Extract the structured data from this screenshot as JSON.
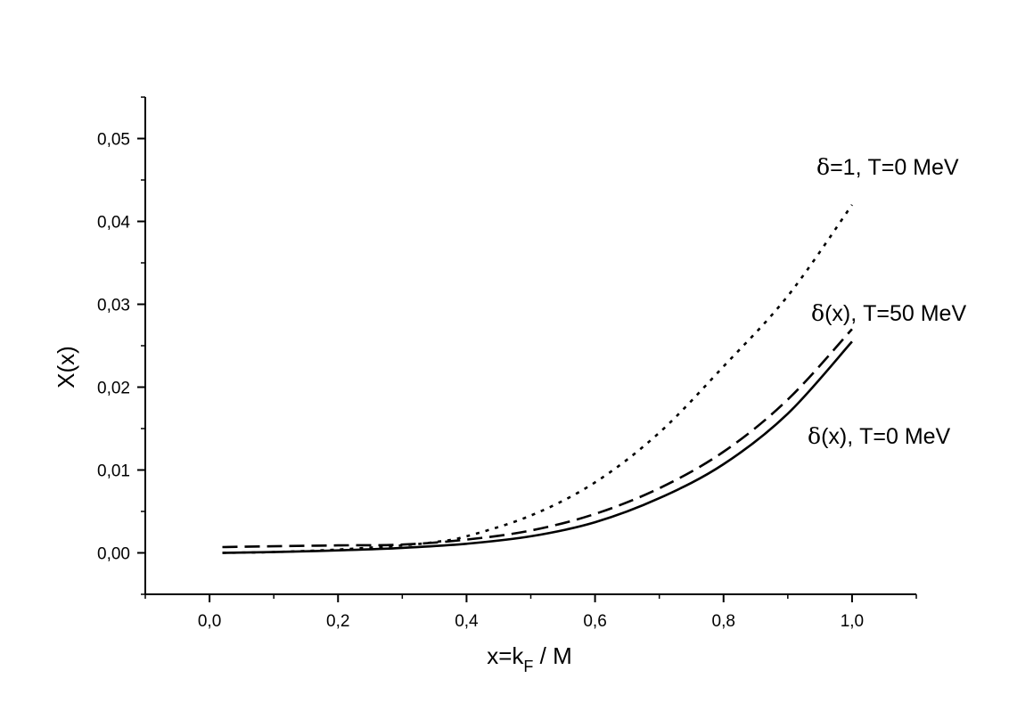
{
  "chart_data": {
    "type": "line",
    "title": "",
    "xlabel": "x=k",
    "xlabel_sub": "F",
    "xlabel_suffix": " / M",
    "ylabel": "X(x)",
    "xlim": [
      -0.1,
      1.1
    ],
    "ylim": [
      -0.005,
      0.055
    ],
    "xticks": [
      0.0,
      0.2,
      0.4,
      0.6,
      0.8,
      1.0
    ],
    "xtick_labels": [
      "0,0",
      "0,2",
      "0,4",
      "0,6",
      "0,8",
      "1,0"
    ],
    "yticks": [
      0.0,
      0.01,
      0.02,
      0.03,
      0.04,
      0.05
    ],
    "ytick_labels": [
      "0,00",
      "0,01",
      "0,02",
      "0,03",
      "0,04",
      "0,05"
    ],
    "grid": false,
    "legend": "inline labels near curve ends",
    "series": [
      {
        "name": "δ=1, T=0 MeV",
        "label_greek": "δ",
        "label_rest": "=1, T=0 MeV",
        "style": "dotted",
        "x": [
          0.02,
          0.1,
          0.2,
          0.3,
          0.35,
          0.4,
          0.5,
          0.6,
          0.7,
          0.8,
          0.9,
          1.0
        ],
        "y": [
          0.0,
          0.0001,
          0.0004,
          0.0009,
          0.0013,
          0.002,
          0.0045,
          0.0085,
          0.0145,
          0.0225,
          0.031,
          0.042
        ]
      },
      {
        "name": "δ(x), T=50 MeV",
        "label_greek": "δ",
        "label_rest": "(x), T=50 MeV",
        "style": "dashed",
        "x": [
          0.02,
          0.1,
          0.2,
          0.3,
          0.4,
          0.5,
          0.6,
          0.7,
          0.8,
          0.9,
          1.0
        ],
        "y": [
          0.0007,
          0.0008,
          0.0009,
          0.001,
          0.0016,
          0.0027,
          0.0047,
          0.0078,
          0.0122,
          0.0185,
          0.027
        ]
      },
      {
        "name": "δ(x), T=0 MeV",
        "label_greek": "δ",
        "label_rest": "(x), T=0 MeV",
        "style": "solid",
        "x": [
          0.02,
          0.1,
          0.2,
          0.3,
          0.4,
          0.5,
          0.6,
          0.7,
          0.8,
          0.9,
          1.0
        ],
        "y": [
          0.0,
          0.0001,
          0.0003,
          0.0006,
          0.0011,
          0.002,
          0.0037,
          0.0066,
          0.0107,
          0.0168,
          0.0255
        ]
      }
    ]
  }
}
